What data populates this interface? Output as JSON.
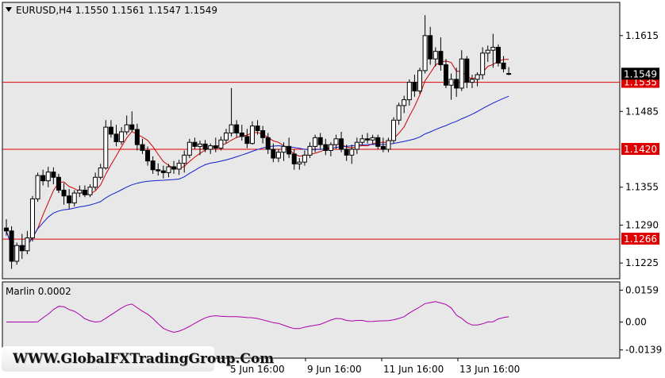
{
  "header": {
    "symbol_line": "EURUSD,H4  1.1550 1.1561 1.1547 1.1549",
    "indicator_label": "Marlin 0.0002"
  },
  "watermark": "WWW.GlobalFXTradingGroup.Com",
  "colors": {
    "plot_bg": "#e8e8e8",
    "candle_up": "#ffffff",
    "candle_down": "#000000",
    "ma_fast": "#cc0000",
    "ma_slow": "#1020cc",
    "level_line": "#e00000",
    "oscillator": "#aa00aa"
  },
  "chart_data": [
    {
      "type": "candlestick",
      "symbol": "EURUSD",
      "timeframe": "H4",
      "ohlc_last": {
        "open": 1.155,
        "high": 1.1561,
        "low": 1.1547,
        "close": 1.1549
      },
      "y_ticks": [
        "1.1615",
        "1.1485",
        "1.1355",
        "1.1290",
        "1.1225"
      ],
      "ylim": [
        1.1198,
        1.1672
      ],
      "x_labels": [
        "5 Jun 16:00",
        "9 Jun 16:00",
        "11 Jun 16:00",
        "13 Jun 16:00"
      ],
      "current_price": "1.1549",
      "levels": [
        {
          "label": "1.1535",
          "value": 1.1535
        },
        {
          "label": "1.1420",
          "value": 1.142
        },
        {
          "label": "1.1266",
          "value": 1.1266
        }
      ],
      "candles": [
        [
          1.1285,
          1.13,
          1.1272,
          1.128
        ],
        [
          1.128,
          1.1288,
          1.1215,
          1.1228
        ],
        [
          1.1228,
          1.126,
          1.1222,
          1.1255
        ],
        [
          1.1255,
          1.1275,
          1.1232,
          1.1246
        ],
        [
          1.1246,
          1.128,
          1.124,
          1.1268
        ],
        [
          1.1268,
          1.134,
          1.1262,
          1.1335
        ],
        [
          1.1335,
          1.138,
          1.133,
          1.1375
        ],
        [
          1.1375,
          1.1385,
          1.1358,
          1.1366
        ],
        [
          1.1366,
          1.139,
          1.1355,
          1.1381
        ],
        [
          1.1381,
          1.1389,
          1.136,
          1.1372
        ],
        [
          1.1372,
          1.1378,
          1.1345,
          1.135
        ],
        [
          1.135,
          1.1362,
          1.1325,
          1.134
        ],
        [
          1.134,
          1.1352,
          1.1318,
          1.1328
        ],
        [
          1.1328,
          1.135,
          1.1322,
          1.1345
        ],
        [
          1.1345,
          1.1358,
          1.1338,
          1.135
        ],
        [
          1.135,
          1.1358,
          1.1338,
          1.1342
        ],
        [
          1.1342,
          1.136,
          1.1338,
          1.1355
        ],
        [
          1.1355,
          1.138,
          1.135,
          1.1372
        ],
        [
          1.1372,
          1.1395,
          1.1368,
          1.1388
        ],
        [
          1.1388,
          1.147,
          1.1385,
          1.1458
        ],
        [
          1.1458,
          1.147,
          1.144,
          1.1446
        ],
        [
          1.1446,
          1.1462,
          1.1425,
          1.1433
        ],
        [
          1.1433,
          1.1458,
          1.1428,
          1.145
        ],
        [
          1.145,
          1.1478,
          1.1445,
          1.1462
        ],
        [
          1.1462,
          1.1485,
          1.145,
          1.1454
        ],
        [
          1.1454,
          1.1464,
          1.1418,
          1.1428
        ],
        [
          1.1428,
          1.1438,
          1.1412,
          1.1418
        ],
        [
          1.1418,
          1.1425,
          1.1392,
          1.14
        ],
        [
          1.14,
          1.1408,
          1.1378,
          1.1385
        ],
        [
          1.1385,
          1.1396,
          1.1375,
          1.1383
        ],
        [
          1.1383,
          1.1392,
          1.137,
          1.138
        ],
        [
          1.138,
          1.1395,
          1.1372,
          1.139
        ],
        [
          1.139,
          1.14,
          1.1378,
          1.1386
        ],
        [
          1.1386,
          1.1402,
          1.1376,
          1.1396
        ],
        [
          1.1396,
          1.1418,
          1.138,
          1.141
        ],
        [
          1.141,
          1.1438,
          1.1405,
          1.1432
        ],
        [
          1.1432,
          1.144,
          1.142,
          1.1425
        ],
        [
          1.1425,
          1.1435,
          1.141,
          1.1429
        ],
        [
          1.1429,
          1.1436,
          1.1415,
          1.142
        ],
        [
          1.142,
          1.143,
          1.1412,
          1.1426
        ],
        [
          1.1426,
          1.144,
          1.1415,
          1.1422
        ],
        [
          1.1422,
          1.1442,
          1.1418,
          1.1436
        ],
        [
          1.1436,
          1.1455,
          1.143,
          1.1448
        ],
        [
          1.1448,
          1.1525,
          1.1442,
          1.1462
        ],
        [
          1.1462,
          1.147,
          1.144,
          1.1448
        ],
        [
          1.1448,
          1.1462,
          1.1435,
          1.1442
        ],
        [
          1.1442,
          1.1455,
          1.1422,
          1.143
        ],
        [
          1.143,
          1.1468,
          1.1428,
          1.146
        ],
        [
          1.146,
          1.147,
          1.1445,
          1.1452
        ],
        [
          1.1452,
          1.146,
          1.143,
          1.144
        ],
        [
          1.144,
          1.1448,
          1.1412,
          1.142
        ],
        [
          1.142,
          1.143,
          1.1398,
          1.1405
        ],
        [
          1.1405,
          1.142,
          1.1398,
          1.1415
        ],
        [
          1.1415,
          1.1432,
          1.14,
          1.1425
        ],
        [
          1.1425,
          1.144,
          1.1405,
          1.1412
        ],
        [
          1.1412,
          1.142,
          1.1385,
          1.1395
        ],
        [
          1.1395,
          1.1405,
          1.1385,
          1.1398
        ],
        [
          1.1398,
          1.1418,
          1.1392,
          1.141
        ],
        [
          1.141,
          1.1432,
          1.1405,
          1.1425
        ],
        [
          1.1425,
          1.1445,
          1.1415,
          1.144
        ],
        [
          1.144,
          1.1448,
          1.142,
          1.1428
        ],
        [
          1.1428,
          1.1438,
          1.141,
          1.1418
        ],
        [
          1.1418,
          1.1432,
          1.1408,
          1.1428
        ],
        [
          1.1428,
          1.1445,
          1.142,
          1.1438
        ],
        [
          1.1438,
          1.145,
          1.1415,
          1.142
        ],
        [
          1.142,
          1.1428,
          1.14,
          1.141
        ],
        [
          1.141,
          1.1428,
          1.1395,
          1.142
        ],
        [
          1.142,
          1.144,
          1.1412,
          1.1432
        ],
        [
          1.1432,
          1.1445,
          1.1428,
          1.1438
        ],
        [
          1.1438,
          1.1448,
          1.143,
          1.1436
        ],
        [
          1.1436,
          1.1445,
          1.1428,
          1.144
        ],
        [
          1.144,
          1.1445,
          1.142,
          1.1425
        ],
        [
          1.1425,
          1.144,
          1.1415,
          1.142
        ],
        [
          1.142,
          1.144,
          1.1415,
          1.1435
        ],
        [
          1.1435,
          1.1475,
          1.143,
          1.147
        ],
        [
          1.147,
          1.15,
          1.1462,
          1.1495
        ],
        [
          1.1495,
          1.1512,
          1.1482,
          1.1505
        ],
        [
          1.1505,
          1.154,
          1.1495,
          1.1535
        ],
        [
          1.1535,
          1.1548,
          1.151,
          1.152
        ],
        [
          1.152,
          1.156,
          1.1515,
          1.1555
        ],
        [
          1.1555,
          1.165,
          1.155,
          1.1615
        ],
        [
          1.1615,
          1.163,
          1.1565,
          1.1575
        ],
        [
          1.1575,
          1.1595,
          1.1562,
          1.1588
        ],
        [
          1.1588,
          1.1612,
          1.1555,
          1.1565
        ],
        [
          1.1565,
          1.1575,
          1.1525,
          1.153
        ],
        [
          1.153,
          1.155,
          1.1505,
          1.154
        ],
        [
          1.154,
          1.156,
          1.151,
          1.1525
        ],
        [
          1.1525,
          1.159,
          1.152,
          1.1575
        ],
        [
          1.1575,
          1.158,
          1.1525,
          1.1535
        ],
        [
          1.1535,
          1.1548,
          1.1525,
          1.154
        ],
        [
          1.154,
          1.1552,
          1.1528,
          1.1548
        ],
        [
          1.1548,
          1.1595,
          1.154,
          1.1585
        ],
        [
          1.1585,
          1.1598,
          1.157,
          1.159
        ],
        [
          1.159,
          1.1618,
          1.156,
          1.1595
        ],
        [
          1.1595,
          1.16,
          1.1562,
          1.1568
        ],
        [
          1.1568,
          1.158,
          1.1552,
          1.1558
        ],
        [
          1.155,
          1.1561,
          1.1547,
          1.1549
        ]
      ]
    },
    {
      "type": "line",
      "name": "Marlin",
      "value_label": "0.0002",
      "y_ticks": [
        "0.0159",
        "0.00",
        "-0.0139"
      ],
      "ylim": [
        -0.018,
        0.02
      ]
    }
  ]
}
